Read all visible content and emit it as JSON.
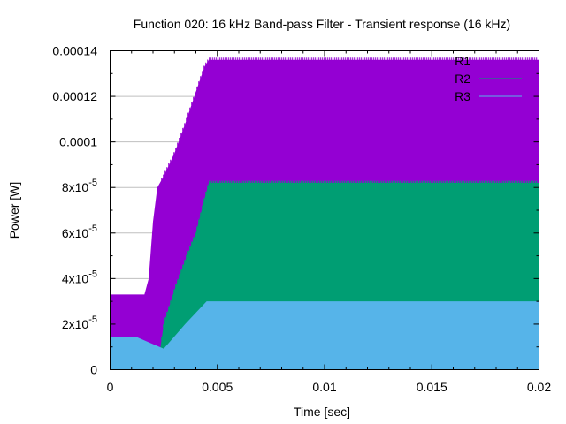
{
  "chart_data": {
    "type": "area",
    "title": "Function 020: 16 kHz Band-pass Filter - Transient response (16 kHz)",
    "xlabel": "Time [sec]",
    "ylabel": "Power [W]",
    "xlim": [
      0,
      0.02
    ],
    "ylim": [
      0,
      0.00014
    ],
    "x_ticks": [
      0,
      0.005,
      0.01,
      0.015,
      0.02
    ],
    "x_tick_labels": [
      "0",
      "0.005",
      "0.01",
      "0.015",
      "0.02"
    ],
    "y_ticks": [
      0,
      2e-05,
      4e-05,
      6e-05,
      8e-05,
      0.0001,
      0.00012,
      0.00014
    ],
    "y_tick_labels": [
      {
        "base": "0",
        "exp": ""
      },
      {
        "base": "2x10",
        "exp": "-5"
      },
      {
        "base": "4x10",
        "exp": "-5"
      },
      {
        "base": "6x10",
        "exp": "-5"
      },
      {
        "base": "8x10",
        "exp": "-5"
      },
      {
        "base": "0.0001",
        "exp": ""
      },
      {
        "base": "0.00012",
        "exp": ""
      },
      {
        "base": "0.00014",
        "exp": ""
      }
    ],
    "grid": "horizontal",
    "legend_position": "top-right",
    "series": [
      {
        "name": "R1",
        "color": "#9400d3",
        "x": [
          0,
          0.0016,
          0.0018,
          0.002,
          0.0022,
          0.0025,
          0.003,
          0.0035,
          0.004,
          0.0044,
          0.0046,
          0.02
        ],
        "y": [
          3.3e-05,
          3.3e-05,
          4e-05,
          6.5e-05,
          8e-05,
          8.5e-05,
          9.5e-05,
          0.000108,
          0.000122,
          0.000133,
          0.000136,
          0.000136
        ]
      },
      {
        "name": "R2",
        "color": "#009e73",
        "x": [
          0,
          0.0022,
          0.0025,
          0.003,
          0.0035,
          0.004,
          0.0044,
          0.0046,
          0.02
        ],
        "y": [
          0,
          0,
          2e-05,
          3.5e-05,
          4.8e-05,
          6e-05,
          7.5e-05,
          8.2e-05,
          8.2e-05
        ]
      },
      {
        "name": "R3",
        "color": "#56b4e9",
        "x": [
          0,
          0.0012,
          0.0018,
          0.0025,
          0.0035,
          0.0045,
          0.02
        ],
        "y": [
          1.45e-05,
          1.45e-05,
          1.2e-05,
          9.2e-06,
          2e-05,
          3e-05,
          3e-05
        ]
      }
    ]
  }
}
